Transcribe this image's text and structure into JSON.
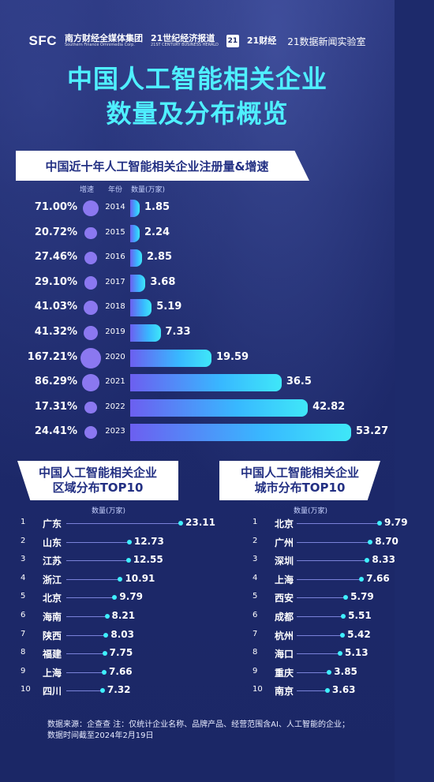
{
  "header": {
    "logo1_abbr": "SFC",
    "logo1_cn": "南方财经全媒体集团",
    "logo1_en": "Southern Finance Omnimedia Corp.",
    "logo2_cn": "21世纪经济报道",
    "logo2_en": "21ST CENTURY BUSINESS HERALD",
    "logo3_box": "21",
    "logo3_cn": "21财经",
    "lab": "21数据新闻实验室"
  },
  "title_line1": "中国人工智能相关企业",
  "title_line2": "数量及分布概览",
  "section1": {
    "title": "中国近十年人工智能相关企业注册量&增速",
    "col_rate": "增速",
    "col_year": "年份",
    "col_count": "数量(万家)"
  },
  "section2": {
    "title_line1": "中国人工智能相关企业",
    "title_line2": "区域分布TOP10",
    "unit": "数量(万家)"
  },
  "section3": {
    "title_line1": "中国人工智能相关企业",
    "title_line2": "城市分布TOP10",
    "unit": "数量(万家)"
  },
  "footer_line1": "数据来源：企查查  注：仅统计企业名称、品牌产品、经营范围含AI、人工智能的企业；",
  "footer_line2": "数据时间截至2024年2月19日",
  "colors": {
    "title": "#4ff0ff",
    "dot": "#8b78f0",
    "bar_start": "#6c5ff0",
    "bar_end": "#3fe7f8"
  },
  "chart_data": [
    {
      "type": "bar",
      "title": "中国近十年人工智能相关企业注册量&增速",
      "categories": [
        "2014",
        "2015",
        "2016",
        "2017",
        "2018",
        "2019",
        "2020",
        "2021",
        "2022",
        "2023"
      ],
      "series": [
        {
          "name": "数量(万家)",
          "values": [
            1.85,
            2.24,
            2.85,
            3.68,
            5.19,
            7.33,
            19.59,
            36.5,
            42.82,
            53.27
          ]
        },
        {
          "name": "增速",
          "values": [
            "71.00%",
            "20.72%",
            "27.46%",
            "29.10%",
            "41.03%",
            "41.32%",
            "167.21%",
            "86.29%",
            "17.31%",
            "24.41%"
          ]
        }
      ],
      "rate_numeric": [
        71.0,
        20.72,
        27.46,
        29.1,
        41.03,
        41.32,
        167.21,
        86.29,
        17.31,
        24.41
      ]
    },
    {
      "type": "bar",
      "title": "区域分布TOP10",
      "categories": [
        "广东",
        "山东",
        "江苏",
        "浙江",
        "北京",
        "海南",
        "陕西",
        "福建",
        "上海",
        "四川"
      ],
      "ranks": [
        "1",
        "2",
        "3",
        "4",
        "5",
        "6",
        "7",
        "8",
        "9",
        "10"
      ],
      "values": [
        23.11,
        12.73,
        12.55,
        10.91,
        9.79,
        8.21,
        8.03,
        7.75,
        7.66,
        7.32
      ],
      "labels": [
        "23.11",
        "12.73",
        "12.55",
        "10.91",
        "9.79",
        "8.21",
        "8.03",
        "7.75",
        "7.66",
        "7.32"
      ]
    },
    {
      "type": "bar",
      "title": "城市分布TOP10",
      "categories": [
        "北京",
        "广州",
        "深圳",
        "上海",
        "西安",
        "成都",
        "杭州",
        "海口",
        "重庆",
        "南京"
      ],
      "ranks": [
        "1",
        "2",
        "3",
        "4",
        "5",
        "6",
        "7",
        "8",
        "9",
        "10"
      ],
      "values": [
        9.79,
        8.7,
        8.33,
        7.66,
        5.79,
        5.51,
        5.42,
        5.13,
        3.85,
        3.63
      ],
      "labels": [
        "9.79",
        "8.70",
        "8.33",
        "7.66",
        "5.79",
        "5.51",
        "5.42",
        "5.13",
        "3.85",
        "3.63"
      ]
    }
  ]
}
